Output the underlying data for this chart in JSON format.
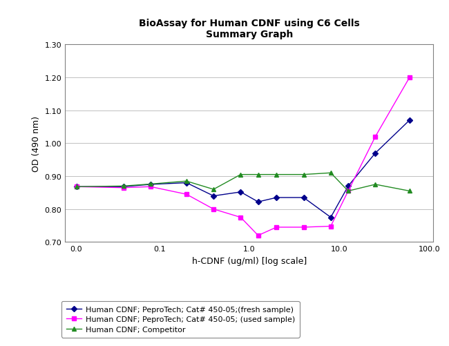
{
  "title_line1": "BioAssay for Human CDNF using C6 Cells",
  "title_line2": "Summary Graph",
  "xlabel": "h-CDNF (ug/ml) [log scale]",
  "ylabel": "OD (490 nm)",
  "ylim": [
    0.7,
    1.3
  ],
  "yticks": [
    0.7,
    0.8,
    0.9,
    1.0,
    1.1,
    1.2,
    1.3
  ],
  "background": "#ffffff",
  "plot_bg": "#ffffff",
  "series": [
    {
      "label": "Human CDNF; PeproTech; Cat# 450-05;(fresh sample)",
      "color": "#00008B",
      "marker": "D",
      "markersize": 4,
      "x": [
        0.012,
        0.04,
        0.08,
        0.2,
        0.4,
        0.8,
        1.25,
        2.0,
        4.0,
        8.0,
        12.5,
        25.0,
        60.0
      ],
      "y": [
        0.868,
        0.868,
        0.875,
        0.88,
        0.84,
        0.852,
        0.822,
        0.835,
        0.835,
        0.775,
        0.87,
        0.97,
        1.07
      ]
    },
    {
      "label": "Human CDNF; PeproTech; Cat# 450-05; (used sample)",
      "color": "#FF00FF",
      "marker": "s",
      "markersize": 4,
      "x": [
        0.012,
        0.04,
        0.08,
        0.2,
        0.4,
        0.8,
        1.25,
        2.0,
        4.0,
        8.0,
        12.5,
        25.0,
        60.0
      ],
      "y": [
        0.868,
        0.865,
        0.868,
        0.845,
        0.8,
        0.775,
        0.72,
        0.745,
        0.745,
        0.748,
        0.855,
        1.02,
        1.2
      ]
    },
    {
      "label": "Human CDNF; Competitor",
      "color": "#228B22",
      "marker": "^",
      "markersize": 5,
      "x": [
        0.012,
        0.04,
        0.08,
        0.2,
        0.4,
        0.8,
        1.25,
        2.0,
        4.0,
        8.0,
        12.5,
        25.0,
        60.0
      ],
      "y": [
        0.868,
        0.87,
        0.876,
        0.885,
        0.86,
        0.905,
        0.905,
        0.905,
        0.905,
        0.91,
        0.855,
        0.875,
        0.855
      ]
    }
  ],
  "xtick_positions": [
    0.012,
    0.1,
    1.0,
    10.0,
    100.0
  ],
  "xtick_labels": [
    "0.0",
    "0.1",
    "1.0",
    "10.0",
    "100.0"
  ],
  "grid_color": "#c0c0c0",
  "spine_color": "#808080",
  "tick_fontsize": 8,
  "label_fontsize": 9,
  "title_fontsize": 10,
  "legend_fontsize": 8
}
